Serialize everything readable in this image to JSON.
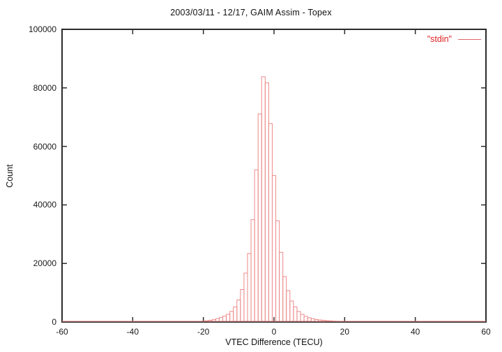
{
  "chart_data": {
    "type": "bar",
    "subtype": "histogram",
    "title": "2003/03/11 - 12/17, GAIM Assim - Topex",
    "xlabel": "VTEC Difference (TECU)",
    "ylabel": "Count",
    "legend": [
      {
        "label": "\"stdin\""
      }
    ],
    "legend_position": "top-right-inside",
    "grid": false,
    "xlim": [
      -60,
      60
    ],
    "ylim": [
      0,
      100000
    ],
    "xticks": [
      -60,
      -40,
      -20,
      0,
      20,
      40,
      60
    ],
    "xtick_labels": [
      "-60",
      "-40",
      "-20",
      "0",
      "20",
      "40",
      "60"
    ],
    "yticks": [
      0,
      20000,
      40000,
      60000,
      80000,
      100000
    ],
    "ytick_labels": [
      "0",
      "20000",
      "40000",
      "60000",
      "80000",
      "100000"
    ],
    "bin_width": 1,
    "bins": [
      -25,
      -24,
      -23,
      -22,
      -21,
      -20,
      -19,
      -18,
      -17,
      -16,
      -15,
      -14,
      -13,
      -12,
      -11,
      -10,
      -9,
      -8,
      -7,
      -6,
      -5,
      -4,
      -3,
      -2,
      -1,
      0,
      1,
      2,
      3,
      4,
      5,
      6,
      7,
      8,
      9,
      10,
      11,
      12,
      13,
      14,
      15,
      16,
      17,
      18,
      19,
      20,
      21,
      22,
      23,
      24,
      25
    ],
    "counts": [
      60,
      80,
      120,
      170,
      230,
      310,
      420,
      570,
      810,
      1120,
      1520,
      2000,
      2620,
      3580,
      5170,
      7550,
      11100,
      16700,
      23400,
      35000,
      52000,
      71100,
      83800,
      81700,
      67800,
      50000,
      34600,
      23800,
      15500,
      10700,
      7150,
      5170,
      3580,
      2620,
      1910,
      1430,
      1120,
      880,
      690,
      570,
      450,
      380,
      310,
      260,
      220,
      180,
      150,
      120,
      90,
      70,
      50
    ],
    "colors": {
      "bar": "#ee8a8a",
      "legend_text": "#dd2222",
      "legend_line": "#e06666",
      "frame": "#2b2b2b",
      "text": "#111111"
    }
  }
}
